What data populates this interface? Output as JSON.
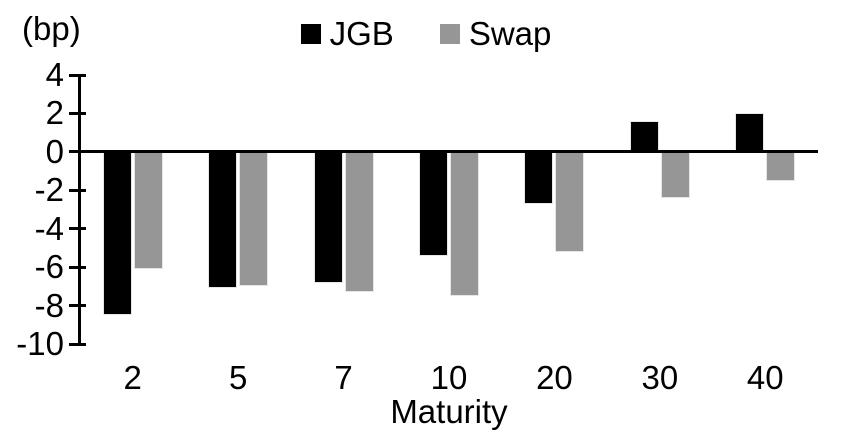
{
  "chart_data": {
    "type": "bar",
    "title": "",
    "y_unit_label": "(bp)",
    "xlabel": "Maturity",
    "ylabel": "",
    "categories": [
      "2",
      "5",
      "7",
      "10",
      "20",
      "30",
      "40"
    ],
    "series": [
      {
        "name": "JGB",
        "color": "#000000",
        "values": [
          -8.5,
          -7.1,
          -6.8,
          -5.4,
          -2.7,
          1.6,
          2.0
        ]
      },
      {
        "name": "Swap",
        "color": "#969696",
        "values": [
          -6.1,
          -7.0,
          -7.3,
          -7.5,
          -5.2,
          -2.4,
          -1.5
        ]
      }
    ],
    "y_axis": {
      "min": -10,
      "max": 4,
      "step": 2,
      "tick_labels": [
        "4",
        "2",
        "0",
        "-2",
        "-4",
        "-6",
        "-8",
        "-10"
      ]
    },
    "legend_position": "top-center",
    "grid": false,
    "colors": {
      "background": "#ffffff",
      "axis": "#000000"
    }
  }
}
